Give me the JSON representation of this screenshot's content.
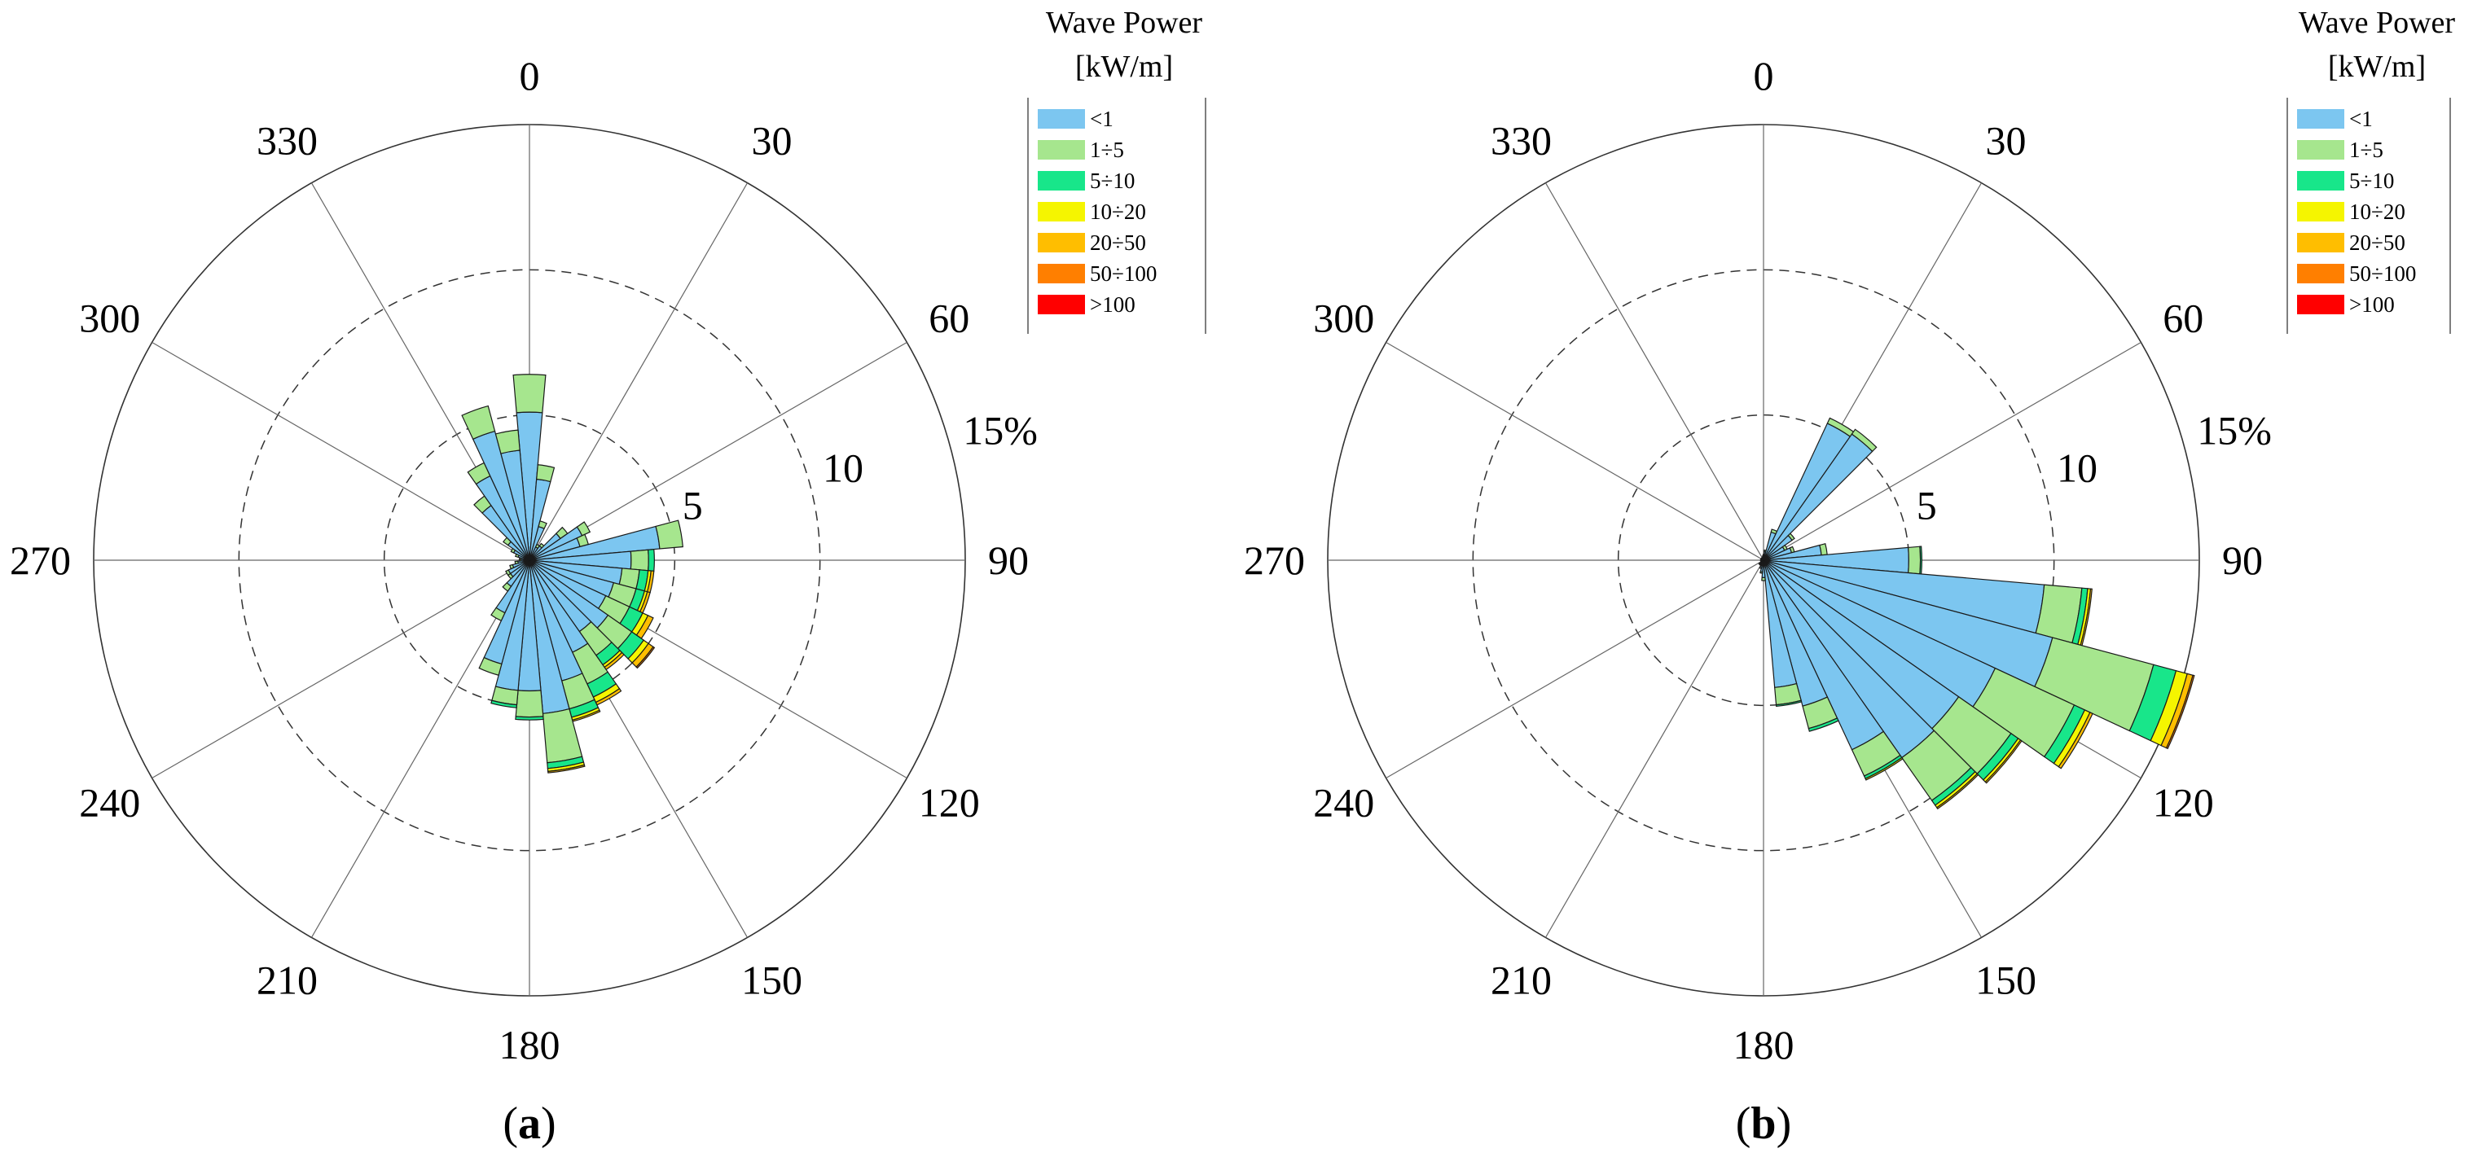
{
  "figure": {
    "panel_labels": [
      "(a)",
      "(b)"
    ]
  },
  "legend": {
    "title_line1": "Wave Power",
    "title_line2": "[kW/m]",
    "classes": [
      {
        "label": "<1",
        "color": "#7cc6f0"
      },
      {
        "label": "1÷5",
        "color": "#a6e68e"
      },
      {
        "label": "5÷10",
        "color": "#18e68a"
      },
      {
        "label": "10÷20",
        "color": "#f5f500"
      },
      {
        "label": "20÷50",
        "color": "#ffbe00"
      },
      {
        "label": "50÷100",
        "color": "#ff7f00"
      },
      {
        "label": ">100",
        "color": "#ff0000"
      }
    ]
  },
  "chart_data": [
    {
      "type": "wind_rose",
      "panel": "(a)",
      "direction_labels": [
        "0",
        "30",
        "60",
        "90",
        "120",
        "150",
        "180",
        "210",
        "240",
        "270",
        "300",
        "330"
      ],
      "radial_ticks": [
        {
          "value": 5,
          "label": "5"
        },
        {
          "value": 10,
          "label": "10"
        },
        {
          "value": 15,
          "label": "15%"
        }
      ],
      "r_max": 15,
      "sector_width_deg": 10,
      "series_names": [
        "<1",
        "1÷5",
        "5÷10",
        "10÷20",
        "20÷50",
        "50÷100",
        ">100"
      ],
      "sectors": [
        {
          "dir": 0,
          "values": [
            5.1,
            1.3,
            0,
            0,
            0,
            0,
            0
          ]
        },
        {
          "dir": 10,
          "values": [
            2.8,
            0.5,
            0,
            0,
            0,
            0,
            0
          ]
        },
        {
          "dir": 20,
          "values": [
            1.2,
            0.2,
            0,
            0,
            0,
            0,
            0
          ]
        },
        {
          "dir": 30,
          "values": [
            0.5,
            0.1,
            0,
            0,
            0,
            0,
            0
          ]
        },
        {
          "dir": 40,
          "values": [
            0.6,
            0.1,
            0,
            0,
            0,
            0,
            0
          ]
        },
        {
          "dir": 50,
          "values": [
            1.3,
            0.3,
            0,
            0,
            0,
            0,
            0
          ]
        },
        {
          "dir": 60,
          "values": [
            2.0,
            0.3,
            0,
            0,
            0,
            0,
            0
          ]
        },
        {
          "dir": 70,
          "values": [
            1.8,
            0.3,
            0,
            0,
            0,
            0,
            0
          ]
        },
        {
          "dir": 80,
          "values": [
            4.5,
            0.8,
            0,
            0,
            0,
            0,
            0
          ]
        },
        {
          "dir": 90,
          "values": [
            3.5,
            0.6,
            0.2,
            0,
            0,
            0,
            0
          ]
        },
        {
          "dir": 100,
          "values": [
            3.2,
            0.6,
            0.3,
            0.1,
            0.1,
            0,
            0
          ]
        },
        {
          "dir": 110,
          "values": [
            3.0,
            0.8,
            0.3,
            0.1,
            0.1,
            0,
            0
          ]
        },
        {
          "dir": 120,
          "values": [
            2.9,
            0.9,
            0.5,
            0.2,
            0.2,
            0,
            0
          ]
        },
        {
          "dir": 130,
          "values": [
            3.3,
            1.0,
            0.5,
            0.2,
            0.2,
            0.05,
            0
          ]
        },
        {
          "dir": 140,
          "values": [
            3.0,
            1.0,
            0.4,
            0.1,
            0.1,
            0,
            0
          ]
        },
        {
          "dir": 150,
          "values": [
            3.5,
            1.2,
            0.5,
            0.2,
            0.1,
            0,
            0
          ]
        },
        {
          "dir": 160,
          "values": [
            4.3,
            1.0,
            0.3,
            0.1,
            0.05,
            0,
            0
          ]
        },
        {
          "dir": 170,
          "values": [
            5.3,
            1.7,
            0.2,
            0.1,
            0.05,
            0,
            0
          ]
        },
        {
          "dir": 180,
          "values": [
            4.5,
            0.9,
            0.1,
            0,
            0,
            0,
            0
          ]
        },
        {
          "dir": 190,
          "values": [
            4.5,
            0.5,
            0.1,
            0,
            0,
            0,
            0
          ]
        },
        {
          "dir": 200,
          "values": [
            3.7,
            0.4,
            0,
            0,
            0,
            0,
            0
          ]
        },
        {
          "dir": 210,
          "values": [
            2.0,
            0.3,
            0,
            0,
            0,
            0,
            0
          ]
        },
        {
          "dir": 220,
          "values": [
            1.1,
            0.2,
            0,
            0,
            0,
            0,
            0
          ]
        },
        {
          "dir": 230,
          "values": [
            0.8,
            0.1,
            0,
            0,
            0,
            0,
            0
          ]
        },
        {
          "dir": 240,
          "values": [
            0.8,
            0.1,
            0,
            0,
            0,
            0,
            0
          ]
        },
        {
          "dir": 250,
          "values": [
            0.6,
            0.1,
            0,
            0,
            0,
            0,
            0
          ]
        },
        {
          "dir": 260,
          "values": [
            0.4,
            0.1,
            0,
            0,
            0,
            0,
            0
          ]
        },
        {
          "dir": 270,
          "values": [
            0.3,
            0.05,
            0,
            0,
            0,
            0,
            0
          ]
        },
        {
          "dir": 280,
          "values": [
            0.3,
            0.05,
            0,
            0,
            0,
            0,
            0
          ]
        },
        {
          "dir": 290,
          "values": [
            0.4,
            0.1,
            0,
            0,
            0,
            0,
            0
          ]
        },
        {
          "dir": 300,
          "values": [
            0.6,
            0.1,
            0,
            0,
            0,
            0,
            0
          ]
        },
        {
          "dir": 310,
          "values": [
            0.9,
            0.2,
            0,
            0,
            0,
            0,
            0
          ]
        },
        {
          "dir": 320,
          "values": [
            2.3,
            0.4,
            0,
            0,
            0,
            0,
            0
          ]
        },
        {
          "dir": 330,
          "values": [
            3.2,
            0.5,
            0,
            0,
            0,
            0,
            0
          ]
        },
        {
          "dir": 340,
          "values": [
            4.6,
            0.9,
            0,
            0,
            0,
            0,
            0
          ]
        },
        {
          "dir": 350,
          "values": [
            3.8,
            0.7,
            0,
            0,
            0,
            0,
            0
          ]
        }
      ]
    },
    {
      "type": "wind_rose",
      "panel": "(b)",
      "direction_labels": [
        "0",
        "30",
        "60",
        "90",
        "120",
        "150",
        "180",
        "210",
        "240",
        "270",
        "300",
        "330"
      ],
      "radial_ticks": [
        {
          "value": 5,
          "label": "5"
        },
        {
          "value": 10,
          "label": "10"
        },
        {
          "value": 15,
          "label": "15%"
        }
      ],
      "r_max": 15,
      "sector_width_deg": 10,
      "series_names": [
        "<1",
        "1÷5",
        "5÷10",
        "10÷20",
        "20÷50",
        "50÷100",
        ">100"
      ],
      "sectors": [
        {
          "dir": 0,
          "values": [
            0.2,
            0,
            0,
            0,
            0,
            0,
            0
          ]
        },
        {
          "dir": 10,
          "values": [
            0.3,
            0.05,
            0,
            0,
            0,
            0,
            0
          ]
        },
        {
          "dir": 20,
          "values": [
            1.0,
            0.1,
            0,
            0,
            0,
            0,
            0
          ]
        },
        {
          "dir": 30,
          "values": [
            5.2,
            0.2,
            0,
            0,
            0,
            0,
            0
          ]
        },
        {
          "dir": 40,
          "values": [
            5.3,
            0.2,
            0,
            0,
            0,
            0,
            0
          ]
        },
        {
          "dir": 50,
          "values": [
            1.2,
            0.1,
            0,
            0,
            0,
            0,
            0
          ]
        },
        {
          "dir": 60,
          "values": [
            0.8,
            0.1,
            0,
            0,
            0,
            0,
            0
          ]
        },
        {
          "dir": 70,
          "values": [
            1.0,
            0.1,
            0,
            0,
            0,
            0,
            0
          ]
        },
        {
          "dir": 80,
          "values": [
            2.0,
            0.2,
            0,
            0,
            0,
            0,
            0
          ]
        },
        {
          "dir": 90,
          "values": [
            5.0,
            0.4,
            0.05,
            0,
            0,
            0,
            0
          ]
        },
        {
          "dir": 100,
          "values": [
            9.7,
            1.3,
            0.2,
            0.1,
            0.05,
            0,
            0
          ]
        },
        {
          "dir": 110,
          "values": [
            10.3,
            3.6,
            0.8,
            0.4,
            0.2,
            0.05,
            0
          ]
        },
        {
          "dir": 120,
          "values": [
            8.8,
            3.0,
            0.4,
            0.2,
            0.1,
            0,
            0
          ]
        },
        {
          "dir": 130,
          "values": [
            8.2,
            2.2,
            0.3,
            0.1,
            0.05,
            0,
            0
          ]
        },
        {
          "dir": 140,
          "values": [
            8.3,
            1.8,
            0.2,
            0.1,
            0.05,
            0,
            0
          ]
        },
        {
          "dir": 150,
          "values": [
            7.2,
            1.0,
            0.1,
            0.05,
            0,
            0,
            0
          ]
        },
        {
          "dir": 160,
          "values": [
            5.2,
            0.8,
            0.1,
            0,
            0,
            0,
            0
          ]
        },
        {
          "dir": 170,
          "values": [
            4.4,
            0.6,
            0.05,
            0,
            0,
            0,
            0
          ]
        },
        {
          "dir": 180,
          "values": [
            0.6,
            0.1,
            0,
            0,
            0,
            0,
            0
          ]
        },
        {
          "dir": 190,
          "values": [
            0.4,
            0.05,
            0,
            0,
            0,
            0,
            0
          ]
        },
        {
          "dir": 200,
          "values": [
            0.3,
            0,
            0,
            0,
            0,
            0,
            0
          ]
        },
        {
          "dir": 210,
          "values": [
            0.2,
            0,
            0,
            0,
            0,
            0,
            0
          ]
        },
        {
          "dir": 220,
          "values": [
            0.2,
            0,
            0,
            0,
            0,
            0,
            0
          ]
        },
        {
          "dir": 230,
          "values": [
            0.2,
            0,
            0,
            0,
            0,
            0,
            0
          ]
        },
        {
          "dir": 240,
          "values": [
            0.1,
            0,
            0,
            0,
            0,
            0,
            0
          ]
        },
        {
          "dir": 250,
          "values": [
            0.1,
            0,
            0,
            0,
            0,
            0,
            0
          ]
        },
        {
          "dir": 260,
          "values": [
            0.1,
            0,
            0,
            0,
            0,
            0,
            0
          ]
        },
        {
          "dir": 270,
          "values": [
            0.1,
            0,
            0,
            0,
            0,
            0,
            0
          ]
        },
        {
          "dir": 280,
          "values": [
            0.1,
            0,
            0,
            0,
            0,
            0,
            0
          ]
        },
        {
          "dir": 290,
          "values": [
            0.1,
            0,
            0,
            0,
            0,
            0,
            0
          ]
        },
        {
          "dir": 300,
          "values": [
            0.1,
            0,
            0,
            0,
            0,
            0,
            0
          ]
        },
        {
          "dir": 310,
          "values": [
            0.1,
            0,
            0,
            0,
            0,
            0,
            0
          ]
        },
        {
          "dir": 320,
          "values": [
            0.1,
            0,
            0,
            0,
            0,
            0,
            0
          ]
        },
        {
          "dir": 330,
          "values": [
            0.1,
            0,
            0,
            0,
            0,
            0,
            0
          ]
        },
        {
          "dir": 340,
          "values": [
            0.1,
            0,
            0,
            0,
            0,
            0,
            0
          ]
        },
        {
          "dir": 350,
          "values": [
            0.15,
            0,
            0,
            0,
            0,
            0,
            0
          ]
        }
      ]
    }
  ]
}
